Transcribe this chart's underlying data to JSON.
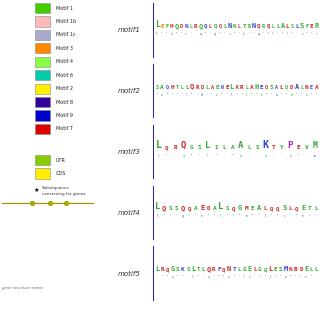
{
  "legend_motifs": [
    {
      "label": "Motif 1",
      "color": "#44cc00"
    },
    {
      "label": "Motif 1b",
      "color": "#ffbbbb"
    },
    {
      "label": "Motif 1c",
      "color": "#aaaacc"
    },
    {
      "label": "Motif 3",
      "color": "#ff8800"
    },
    {
      "label": "Motif 4",
      "color": "#88ff44"
    },
    {
      "label": "Motif 6",
      "color": "#00ccaa"
    },
    {
      "label": "Motif 2",
      "color": "#ffee00"
    },
    {
      "label": "Motif 8",
      "color": "#330099"
    },
    {
      "label": "Motif 9",
      "color": "#0000cc"
    },
    {
      "label": "Motif T",
      "color": "#dd0000"
    }
  ],
  "legend_tracks": [
    {
      "label": "UTR",
      "color": "#88cc00"
    },
    {
      "label": "CDS",
      "color": "#ffee00"
    }
  ],
  "star_note": "Subsequence\nconserving for genes",
  "motif_labels": [
    "motif1",
    "motif2",
    "motif3",
    "motif4",
    "motif5"
  ],
  "gene_line_color": "#999900",
  "background_color": "#ffffff"
}
